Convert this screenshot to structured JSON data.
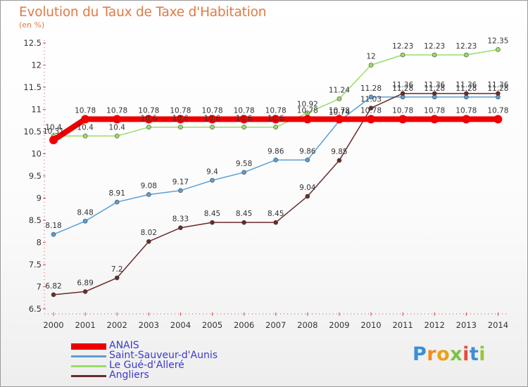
{
  "chart_data": {
    "type": "line",
    "title": "Evolution du Taux de Taxe d'Habitation",
    "unit": "(en %)",
    "x": [
      "2000",
      "2001",
      "2002",
      "2003",
      "2004",
      "2005",
      "2006",
      "2007",
      "2008",
      "2009",
      "2010",
      "2011",
      "2012",
      "2013",
      "2014"
    ],
    "ylim": [
      6.5,
      12.5
    ],
    "yticks": [
      "6.5",
      "7",
      "7.5",
      "8",
      "8.5",
      "9",
      "9.5",
      "10",
      "10.5",
      "11",
      "11.5",
      "12",
      "12.5"
    ],
    "grid": false,
    "legend_position": "bottom-left",
    "series": [
      {
        "name": "ANAIS",
        "color": "#ee0000",
        "values": [
          10.31,
          10.78,
          10.78,
          10.78,
          10.78,
          10.78,
          10.78,
          10.78,
          10.78,
          10.78,
          10.78,
          10.78,
          10.78,
          10.78,
          10.78
        ],
        "labels": [
          "10.31",
          "10.78",
          "10.78",
          "10.78",
          "10.78",
          "10.78",
          "10.78",
          "10.78",
          "10.78",
          "10.78",
          "10.78",
          "10.78",
          "10.78",
          "10.78",
          "10.78"
        ]
      },
      {
        "name": "Saint-Sauveur-d'Aunis",
        "color": "#5a9fd4",
        "values": [
          8.18,
          8.48,
          8.91,
          9.08,
          9.17,
          9.4,
          9.58,
          9.86,
          9.86,
          10.74,
          11.28,
          11.28,
          11.28,
          11.28,
          11.28
        ],
        "labels": [
          "8.18",
          "8.48",
          "8.91",
          "9.08",
          "9.17",
          "9.4",
          "9.58",
          "9.86",
          "9.86",
          "10.74",
          "11.28",
          "11.28",
          "11.28",
          "11.28",
          "11.28"
        ]
      },
      {
        "name": "Le Gué-d'Alleré",
        "color": "#99dd66",
        "values": [
          10.4,
          10.4,
          10.4,
          10.6,
          10.6,
          10.6,
          10.6,
          10.6,
          10.92,
          11.24,
          12,
          12.23,
          12.23,
          12.23,
          12.35
        ],
        "labels": [
          "10.4",
          "10.4",
          "10.4",
          "10.6",
          "10.6",
          "10.6",
          "10.6",
          "10.6",
          "10.92",
          "11.24",
          "12",
          "12.23",
          "12.23",
          "12.23",
          "12.35"
        ]
      },
      {
        "name": "Angliers",
        "color": "#6b2a2a",
        "values": [
          6.82,
          6.89,
          7.2,
          8.02,
          8.33,
          8.45,
          8.45,
          8.45,
          9.04,
          9.85,
          11.03,
          11.36,
          11.36,
          11.36,
          11.36
        ],
        "labels": [
          "6.82",
          "6.89",
          "7.2",
          "8.02",
          "8.33",
          "8.45",
          "8.45",
          "8.45",
          "9.04",
          "9.85",
          "11.03",
          "11.36",
          "11.36",
          "11.36",
          "11.36"
        ]
      }
    ]
  },
  "brand": {
    "letters": [
      "P",
      "r",
      "o",
      "x",
      "i",
      "t",
      "i"
    ],
    "colors": [
      "#3b8ed8",
      "#f28c1c",
      "#e8a21a",
      "#7cc242",
      "#e84c3d",
      "#3b8ed8",
      "#9ac43a"
    ]
  }
}
